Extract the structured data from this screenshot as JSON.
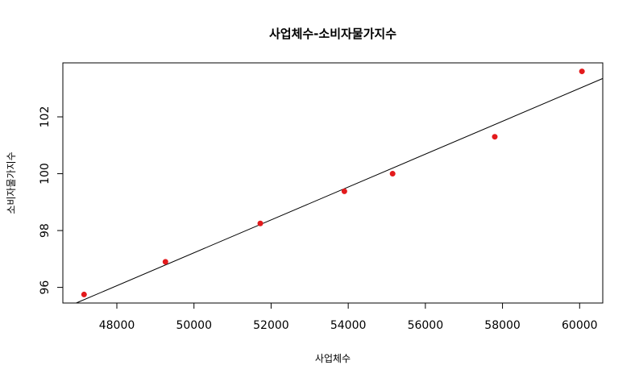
{
  "chart_data": {
    "type": "scatter",
    "title": "사업체수-소비자물가지수",
    "xlabel": "사업체수",
    "ylabel": "소비자물가지수",
    "xlim": [
      46600,
      60600
    ],
    "ylim": [
      95.45,
      103.9
    ],
    "x_ticks": [
      48000,
      50000,
      52000,
      54000,
      56000,
      58000,
      60000
    ],
    "x_tick_labels": [
      "48000",
      "50000",
      "52000",
      "54000",
      "56000",
      "58000",
      "60000"
    ],
    "y_ticks": [
      96,
      98,
      100,
      102
    ],
    "y_tick_labels": [
      "96",
      "98",
      "100",
      "102"
    ],
    "points": [
      {
        "x": 47150,
        "y": 95.75
      },
      {
        "x": 49260,
        "y": 96.9
      },
      {
        "x": 51720,
        "y": 98.25
      },
      {
        "x": 53900,
        "y": 99.38
      },
      {
        "x": 55150,
        "y": 100.0
      },
      {
        "x": 57800,
        "y": 101.3
      },
      {
        "x": 60060,
        "y": 103.6
      }
    ],
    "regression_line": {
      "x": [
        46600,
        60600
      ],
      "y": [
        95.25,
        103.35
      ]
    },
    "point_color": "#e31a1c",
    "line_color": "#000000",
    "grid": false,
    "legend": "none"
  }
}
